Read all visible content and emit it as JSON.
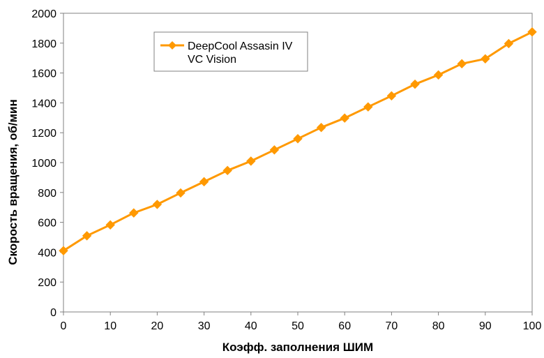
{
  "chart_data": {
    "type": "line",
    "xlabel": "Коэфф. заполнения ШИМ",
    "ylabel": "Скорость вращения, об/мин",
    "xlim": [
      0,
      100
    ],
    "ylim": [
      0,
      2000
    ],
    "x_ticks": [
      0,
      10,
      20,
      30,
      40,
      50,
      60,
      70,
      80,
      90,
      100
    ],
    "y_ticks": [
      0,
      200,
      400,
      600,
      800,
      1000,
      1200,
      1400,
      1600,
      1800,
      2000
    ],
    "grid": false,
    "legend_position": "top-left",
    "series": [
      {
        "name": "DeepCool Assasin IV VC Vision",
        "name_lines": [
          "DeepCool Assasin IV",
          "VC Vision"
        ],
        "color": "#FF9900",
        "marker": "diamond",
        "x": [
          0,
          5,
          10,
          15,
          20,
          25,
          30,
          35,
          40,
          45,
          50,
          55,
          60,
          65,
          70,
          75,
          80,
          85,
          90,
          95,
          100
        ],
        "y": [
          410,
          510,
          583,
          663,
          720,
          797,
          872,
          947,
          1010,
          1085,
          1160,
          1235,
          1298,
          1373,
          1447,
          1525,
          1587,
          1662,
          1695,
          1797,
          1875
        ]
      }
    ]
  }
}
